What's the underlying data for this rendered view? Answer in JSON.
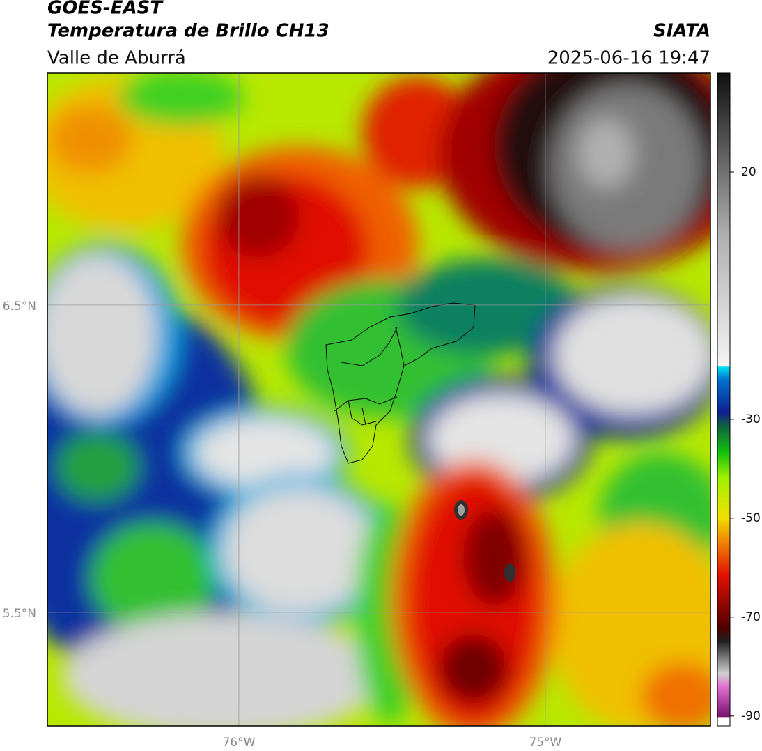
{
  "chart_data": {
    "type": "map",
    "title": "GOES-EAST",
    "subtitle": "Temperatura de Brillo CH13",
    "source": "SIATA",
    "region": "Valle de Aburrá",
    "timestamp": "2025-06-16 19:47",
    "xlim": [
      -76.625,
      -74.461
    ],
    "ylim": [
      5.13,
      7.255
    ],
    "xticks": [
      {
        "value": -76,
        "label": "76°W"
      },
      {
        "value": -75,
        "label": "75°W"
      }
    ],
    "yticks": [
      {
        "value": 6.5,
        "label": "6.5°N"
      },
      {
        "value": 5.5,
        "label": "5.5°N"
      }
    ],
    "grid": true,
    "colorbar": {
      "lim": [
        -92,
        40
      ],
      "ticks": [
        20,
        -30,
        -50,
        -70,
        -90
      ]
    }
  }
}
